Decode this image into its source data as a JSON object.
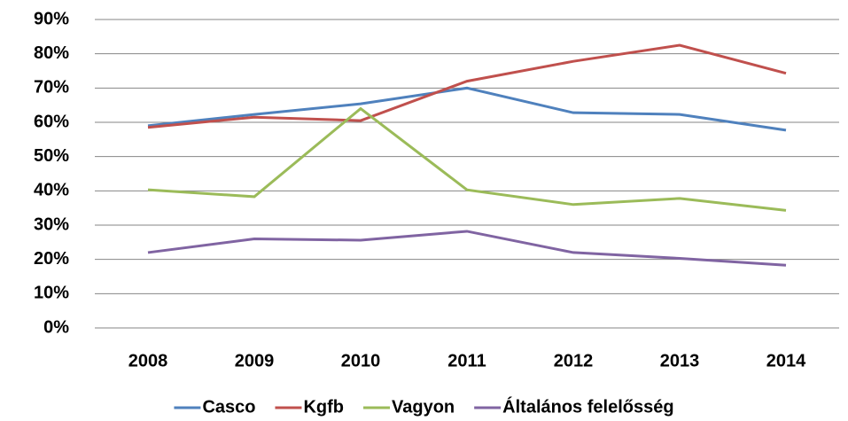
{
  "chart_data": {
    "type": "line",
    "categories": [
      "2008",
      "2009",
      "2010",
      "2011",
      "2012",
      "2013",
      "2014"
    ],
    "series": [
      {
        "name": "Casco",
        "color": "#4f81bd",
        "values": [
          59,
          62.3,
          65.4,
          70,
          62.8,
          62.3,
          57.7
        ]
      },
      {
        "name": "Kgfb",
        "color": "#c0504d",
        "values": [
          58.5,
          61.5,
          60.5,
          72,
          77.8,
          82.5,
          74.3
        ]
      },
      {
        "name": "Vagyon",
        "color": "#9bbb59",
        "values": [
          40.3,
          38.3,
          64,
          40.3,
          36,
          37.8,
          34.3
        ]
      },
      {
        "name": "Általános felelősség",
        "color": "#8064a2",
        "values": [
          22,
          26,
          25.6,
          28.2,
          22,
          20.3,
          18.3
        ]
      }
    ],
    "ylim": [
      0,
      90
    ],
    "yticks": [
      {
        "value": 0,
        "label": "0%"
      },
      {
        "value": 10,
        "label": "10%"
      },
      {
        "value": 20,
        "label": "20%"
      },
      {
        "value": 30,
        "label": "30%"
      },
      {
        "value": 40,
        "label": "40%"
      },
      {
        "value": 50,
        "label": "50%"
      },
      {
        "value": 60,
        "label": "60%"
      },
      {
        "value": 70,
        "label": "70%"
      },
      {
        "value": 80,
        "label": "80%"
      },
      {
        "value": 90,
        "label": "90%"
      }
    ],
    "grid": true,
    "legend": "bottom"
  }
}
